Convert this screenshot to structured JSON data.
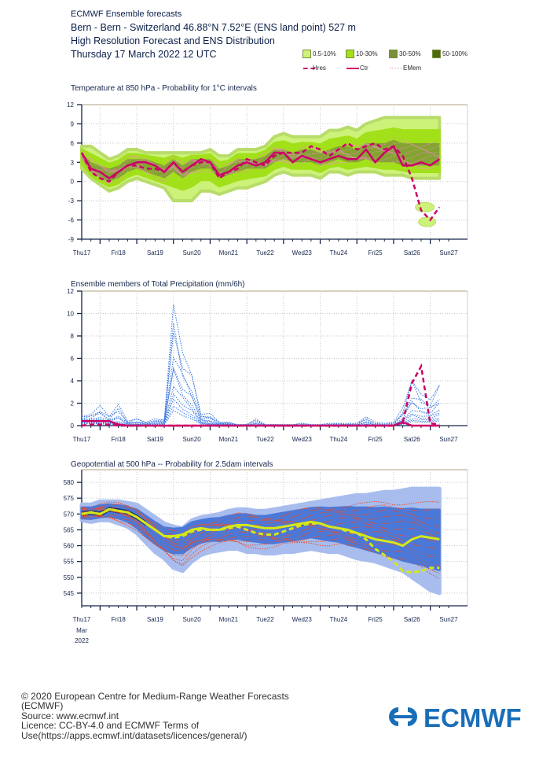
{
  "header": {
    "product": "ECMWF Ensemble forecasts",
    "location": "Bern - Bern - Switzerland 46.88°N 7.52°E (ENS land point) 527 m",
    "subtitle": "High Resolution Forecast and ENS Distribution",
    "run_date": "Thursday 17 March 2022 12 UTC"
  },
  "legend": {
    "probability_bins": [
      {
        "label": "0.5-10%",
        "color": "#ccf27a"
      },
      {
        "label": "10-30%",
        "color": "#a2e01a"
      },
      {
        "label": "30-50%",
        "color": "#7a8f3a"
      },
      {
        "label": "50-100%",
        "color": "#4d6a10"
      }
    ],
    "lines": [
      {
        "label": "Hres",
        "style": "dashed",
        "color": "#cc0066"
      },
      {
        "label": "Ctr",
        "style": "solid",
        "color": "#cc0066"
      },
      {
        "label": "EMem",
        "style": "dotted",
        "color": "#f2a0c8"
      }
    ]
  },
  "x_axis": {
    "day_labels": [
      "Thu17",
      "Fri18",
      "Sat19",
      "Sun20",
      "Mon21",
      "Tue22",
      "Wed23",
      "Thu24",
      "Fri25",
      "Sat26",
      "Sun27"
    ],
    "weekend_labels": [
      "Sun20",
      "Sun27"
    ],
    "weekend_color": "#ff0000",
    "month_label": "Mar",
    "year_label": "2022"
  },
  "chart_data": [
    {
      "type": "area",
      "title": "Temperature at 850 hPa - Probability for 1°C intervals",
      "xlabel": "",
      "ylabel": "",
      "ylim": [
        -9,
        12
      ],
      "yticks": [
        12,
        9,
        6,
        3,
        0,
        -3,
        -6,
        -9
      ],
      "x_unit": "days since Thu17 00UTC",
      "x": [
        0.5,
        0.75,
        1.0,
        1.25,
        1.5,
        1.75,
        2.0,
        2.25,
        2.5,
        2.75,
        3.0,
        3.25,
        3.5,
        3.75,
        4.0,
        4.25,
        4.5,
        4.75,
        5.0,
        5.25,
        5.5,
        5.75,
        6.0,
        6.25,
        6.5,
        6.75,
        7.0,
        7.25,
        7.5,
        7.75,
        8.0,
        8.25,
        8.5,
        8.75,
        9.0,
        9.25,
        9.5,
        9.75,
        10.0,
        10.25
      ],
      "series": [
        {
          "name": "Ctr",
          "values": [
            4.5,
            2.0,
            1.5,
            0.5,
            1.5,
            2.5,
            3.0,
            3.0,
            2.5,
            1.5,
            3.0,
            1.5,
            2.5,
            3.5,
            3.0,
            1.0,
            1.5,
            2.5,
            3.0,
            2.5,
            3.0,
            4.5,
            4.5,
            3.0,
            4.0,
            3.5,
            3.0,
            3.5,
            4.0,
            3.5,
            3.5,
            5.0,
            3.0,
            4.5,
            5.5,
            2.5,
            2.5,
            3.0,
            2.5,
            3.5
          ]
        },
        {
          "name": "Hres",
          "values": [
            4.5,
            1.5,
            0.5,
            0.0,
            1.5,
            2.5,
            2.5,
            2.0,
            2.0,
            1.5,
            3.0,
            1.5,
            2.5,
            3.0,
            3.0,
            0.5,
            1.5,
            2.0,
            3.5,
            3.0,
            2.5,
            4.0,
            4.5,
            4.5,
            4.5,
            5.5,
            5.0,
            4.0,
            5.0,
            6.0,
            5.0,
            5.5,
            6.0,
            5.0,
            5.5,
            4.0,
            0.5,
            -4.5,
            -6.0,
            -4.0
          ]
        },
        {
          "name": "ENS 0.5-10% lower",
          "values": [
            2,
            0.5,
            -0.5,
            -1.5,
            -1,
            0,
            0.5,
            0,
            -0.5,
            -1,
            -3,
            -3,
            -3,
            -1.5,
            -1.5,
            -2,
            -1.5,
            -1,
            -1,
            -0.5,
            0,
            1,
            1.5,
            1,
            1,
            1,
            0.5,
            1.5,
            1.5,
            1,
            1.5,
            1.5,
            1.5,
            1,
            1,
            1,
            0.5,
            0.5,
            0.5,
            0.5
          ]
        },
        {
          "name": "ENS 0.5-10% upper",
          "values": [
            5.5,
            5.5,
            4.5,
            3.5,
            4,
            5,
            5,
            4.5,
            4.5,
            4.5,
            4.5,
            4.5,
            4.5,
            4.5,
            5,
            4,
            4,
            5,
            5,
            5,
            5.5,
            7,
            7.5,
            7,
            7,
            7,
            7,
            8,
            8,
            8.5,
            8,
            9,
            9.5,
            10,
            10,
            10,
            10,
            10,
            10,
            10
          ]
        },
        {
          "name": "ENS 30-50% lower",
          "values": [
            3.5,
            1.5,
            0.5,
            0,
            0.5,
            1.5,
            2,
            1.5,
            1,
            0.5,
            1.5,
            0.5,
            1.5,
            2,
            2,
            0.5,
            1,
            1.5,
            2,
            2,
            2,
            3,
            3.5,
            3,
            3,
            3,
            2.5,
            3,
            3.5,
            3,
            3,
            3.5,
            3,
            3,
            3,
            2.5,
            2.5,
            2.5,
            2.5,
            2.5
          ]
        },
        {
          "name": "ENS 30-50% upper",
          "values": [
            4.5,
            3,
            2.5,
            2,
            2.5,
            3.5,
            3.5,
            3.5,
            3,
            2.5,
            3.5,
            2.5,
            3.5,
            3.5,
            3.5,
            2,
            2.5,
            3.5,
            3.5,
            3.5,
            4,
            5,
            5,
            4.5,
            5,
            5,
            4.5,
            5,
            5.5,
            5.5,
            5,
            6,
            6,
            6,
            6.5,
            6,
            6,
            6,
            6,
            6
          ]
        }
      ],
      "outlier_cluster": {
        "x_range": [
          9.5,
          10.2
        ],
        "y_range": [
          -7,
          -3.5
        ]
      }
    },
    {
      "type": "line",
      "title": "Ensemble members of Total Precipitation (mm/6h)",
      "xlabel": "",
      "ylabel": "",
      "ylim": [
        0,
        12
      ],
      "yticks": [
        12,
        10,
        8,
        6,
        4,
        2,
        0
      ],
      "x_unit": "days since Thu17 00UTC",
      "x": [
        0.5,
        0.75,
        1.0,
        1.25,
        1.5,
        1.75,
        2.0,
        2.25,
        2.5,
        2.75,
        3.0,
        3.25,
        3.5,
        3.75,
        4.0,
        4.25,
        4.5,
        4.75,
        5.0,
        5.25,
        5.5,
        5.75,
        6.0,
        6.25,
        6.5,
        6.75,
        7.0,
        7.25,
        7.5,
        7.75,
        8.0,
        8.25,
        8.5,
        8.75,
        9.0,
        9.25,
        9.5,
        9.75,
        10.0,
        10.25
      ],
      "series": [
        {
          "name": "Ctr",
          "values": [
            0.4,
            0.4,
            0.4,
            0.4,
            0.1,
            0,
            0,
            0,
            0,
            0,
            0,
            0,
            0,
            0,
            0,
            0,
            0,
            0,
            0,
            0,
            0,
            0,
            0,
            0,
            0,
            0,
            0,
            0,
            0,
            0,
            0,
            0,
            0,
            0,
            0,
            0.3,
            0,
            0,
            0,
            0
          ]
        },
        {
          "name": "Hres",
          "values": [
            0,
            0.1,
            0.1,
            0.1,
            0,
            0,
            0,
            0,
            0,
            0,
            0,
            0,
            0,
            0,
            0,
            0,
            0,
            0,
            0,
            0,
            0,
            0,
            0,
            0,
            0,
            0,
            0,
            0,
            0,
            0,
            0,
            0,
            0,
            0,
            0,
            0.3,
            3.8,
            5.3,
            0.2,
            0.1
          ]
        },
        {
          "name": "EMem max",
          "values": [
            0.8,
            1.0,
            1.8,
            0.8,
            1.9,
            0.4,
            0.6,
            0.3,
            0.6,
            0.5,
            10.8,
            6.5,
            4.5,
            1.0,
            1.1,
            0.3,
            0.3,
            0.1,
            0.1,
            0.6,
            0.1,
            0.1,
            0.1,
            0.1,
            0.2,
            0.1,
            0.1,
            0.2,
            0.2,
            0.2,
            0.2,
            0.8,
            0.3,
            0.2,
            0.3,
            1.6,
            4.0,
            2.8,
            2.3,
            3.6
          ]
        },
        {
          "name": "EMem mid",
          "values": [
            0.5,
            0.6,
            0.5,
            0.4,
            0.3,
            0.1,
            0.1,
            0.1,
            0.2,
            0.3,
            4.5,
            3.0,
            2.0,
            0.5,
            0.3,
            0.1,
            0.1,
            0,
            0,
            0,
            0,
            0,
            0,
            0,
            0,
            0,
            0,
            0,
            0,
            0,
            0,
            0.1,
            0,
            0,
            0,
            0.4,
            1.2,
            1.0,
            1.0,
            1.4
          ]
        }
      ]
    },
    {
      "type": "area",
      "title": "Geopotential at 500 hPa -- Probability for 2.5dam intervals",
      "xlabel": "",
      "ylabel": "",
      "ylim": [
        541,
        584
      ],
      "yticks": [
        580,
        575,
        570,
        565,
        560,
        555,
        550,
        545
      ],
      "x_unit": "days since Thu17 00UTC",
      "x": [
        0.5,
        0.75,
        1.0,
        1.25,
        1.5,
        1.75,
        2.0,
        2.25,
        2.5,
        2.75,
        3.0,
        3.25,
        3.5,
        3.75,
        4.0,
        4.25,
        4.5,
        4.75,
        5.0,
        5.25,
        5.5,
        5.75,
        6.0,
        6.25,
        6.5,
        6.75,
        7.0,
        7.25,
        7.5,
        7.75,
        8.0,
        8.25,
        8.5,
        8.75,
        9.0,
        9.25,
        9.5,
        9.75,
        10.0,
        10.25
      ],
      "series": [
        {
          "name": "Ctr",
          "values": [
            570,
            570.5,
            570,
            571.5,
            571,
            570.5,
            569,
            567,
            565,
            563,
            563,
            563.5,
            565,
            565.5,
            565,
            565,
            566,
            566.5,
            566.5,
            566,
            565.5,
            565.5,
            566,
            566.5,
            567,
            567.5,
            567,
            566,
            565.5,
            565,
            564,
            563,
            562,
            561.5,
            561,
            560,
            562,
            563,
            562.5,
            562
          ]
        },
        {
          "name": "Hres",
          "values": [
            570,
            570.5,
            570,
            571.5,
            571,
            570.5,
            569,
            567,
            565,
            563,
            562.5,
            563,
            564.5,
            565,
            565,
            565,
            565.5,
            566,
            565,
            564,
            563.5,
            563.5,
            564.5,
            565.5,
            566.5,
            567,
            567,
            566,
            565.5,
            564.5,
            564,
            562,
            559,
            557,
            555,
            552,
            551.5,
            552,
            553,
            553
          ]
        },
        {
          "name": "ENS 0.5-10% lower",
          "values": [
            568,
            567.5,
            568,
            568,
            567,
            566,
            564,
            561,
            558,
            556,
            553,
            552,
            555,
            557,
            558,
            558.5,
            559,
            559,
            558,
            558,
            557.5,
            557.5,
            558,
            558,
            558.5,
            559,
            558.5,
            558,
            558,
            557,
            556,
            555.5,
            555,
            554,
            553,
            552,
            550,
            548,
            546,
            545
          ]
        },
        {
          "name": "ENS 0.5-10% upper",
          "values": [
            573,
            573,
            574,
            574,
            574,
            573.5,
            573,
            571,
            569,
            567,
            566,
            565.5,
            568,
            569,
            569.5,
            570,
            571,
            571.5,
            571.5,
            571,
            571,
            571.5,
            572,
            572.5,
            573,
            573.5,
            574,
            574.5,
            575,
            575.5,
            576,
            576,
            576.5,
            577,
            577,
            577.5,
            578,
            578,
            578,
            578
          ]
        },
        {
          "name": "ENS 30-50% lower",
          "values": [
            569,
            569,
            569.5,
            570,
            569.5,
            568.5,
            566.5,
            564,
            562,
            560,
            560,
            560.5,
            562,
            563,
            563.5,
            563,
            563.5,
            564,
            563.5,
            563,
            562.5,
            562.5,
            563,
            563.5,
            564,
            564.5,
            564,
            563.5,
            563,
            562,
            561.5,
            560.5,
            559.5,
            559,
            558,
            557,
            557,
            557,
            556.5,
            556
          ]
        },
        {
          "name": "ENS 30-50% upper",
          "values": [
            571.5,
            571.5,
            572,
            572.5,
            572,
            571.5,
            570.5,
            568.5,
            566.5,
            565,
            565,
            565.5,
            567,
            567.5,
            568,
            568,
            568.5,
            569,
            569,
            568.5,
            568.5,
            569,
            569.5,
            570,
            570.5,
            571,
            571,
            570.5,
            570.5,
            570.5,
            570,
            570,
            569.5,
            569.5,
            569,
            568.5,
            568.5,
            568,
            568,
            568
          ]
        }
      ]
    }
  ],
  "footer": {
    "lines": [
      "© 2020 European Centre for Medium-Range Weather Forecasts",
      "(ECMWF)",
      "Source: www.ecmwf.int",
      "Licence: CC-BY-4.0 and ECMWF Terms of",
      "Use(https://apps.ecmwf.int/datasets/licences/general/)"
    ],
    "logo_text": "ECMWF",
    "logo_color": "#1a6eb8"
  },
  "colors": {
    "temp_band_outer": "#ccf27a",
    "temp_band_mid": "#a2e01a",
    "temp_band_inner": "#7a8f3a",
    "temp_line": "#cc0066",
    "temp_members": "#f08cc0",
    "precip_members": "#3a78e0",
    "geo_band_outer": "#a8bdee",
    "geo_band_mid": "#4a78d8",
    "geo_band_inner": "#1a2e60",
    "geo_members": "#e85030",
    "geo_line": "#d4e81a",
    "axis": "#14244a",
    "grid": "#c8c8c8",
    "frame_top": "#d8d0c0"
  }
}
